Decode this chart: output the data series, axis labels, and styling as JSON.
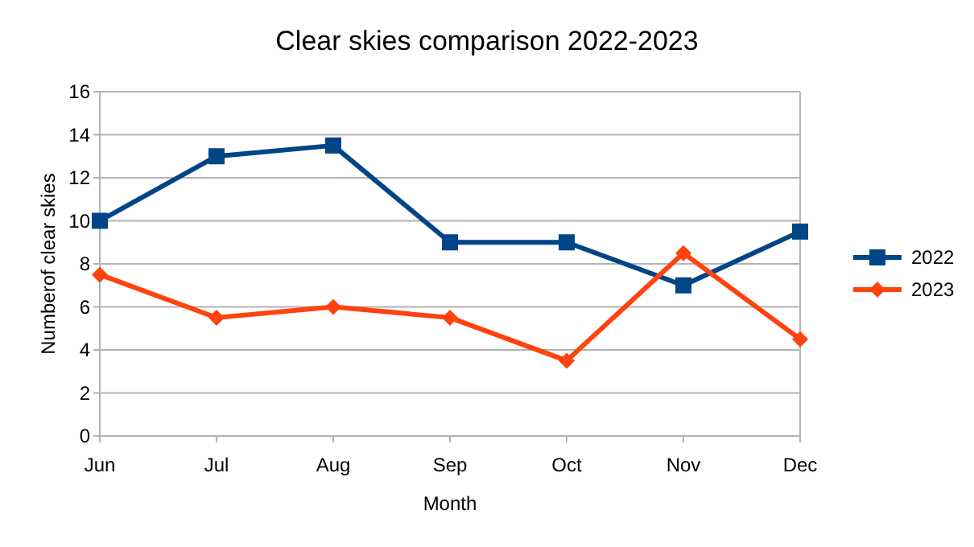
{
  "chart_data": {
    "type": "line",
    "title": "Clear skies comparison 2022-2023",
    "xlabel": "Month",
    "ylabel": "Numberof clear skies",
    "categories": [
      "Jun",
      "Jul",
      "Aug",
      "Sep",
      "Oct",
      "Nov",
      "Dec"
    ],
    "series": [
      {
        "name": "2022",
        "color": "#004586",
        "marker": "square",
        "values": [
          10,
          13,
          13.5,
          9,
          9,
          7,
          9.5
        ]
      },
      {
        "name": "2023",
        "color": "#ff420e",
        "marker": "diamond",
        "values": [
          7.5,
          5.5,
          6,
          5.5,
          3.5,
          8.5,
          4.5
        ]
      }
    ],
    "ylim": [
      0,
      16
    ],
    "yticks": [
      0,
      2,
      4,
      6,
      8,
      10,
      12,
      14,
      16
    ],
    "grid": "y",
    "legend": "right",
    "line_style": "solid"
  }
}
